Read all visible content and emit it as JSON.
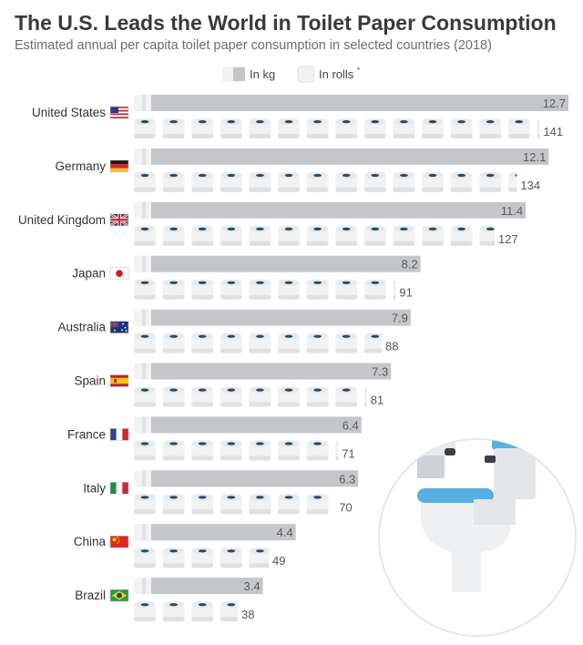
{
  "chart_data": {
    "type": "bar",
    "title": "The U.S. Leads the World in Toilet Paper Consumption",
    "subtitle": "Estimated annual per capita toilet paper consumption in selected countries (2018)",
    "legend": [
      {
        "name": "In kg",
        "sup": ""
      },
      {
        "name": "In rolls",
        "sup": "*"
      }
    ],
    "categories": [
      "United States",
      "Germany",
      "United Kingdom",
      "Japan",
      "Australia",
      "Spain",
      "France",
      "Italy",
      "China",
      "Brazil"
    ],
    "series": [
      {
        "name": "In kg",
        "values": [
          "12.7",
          "12.1",
          "11.4",
          "8.2",
          "7.9",
          "7.3",
          "6.4",
          "6.3",
          "4.4",
          "3.4"
        ]
      },
      {
        "name": "In rolls",
        "values": [
          "141",
          "134",
          "127",
          "91",
          "88",
          "81",
          "71",
          "70",
          "49",
          "38"
        ]
      }
    ],
    "xlim_kg": [
      0,
      12.7
    ],
    "flags": [
      "us",
      "de",
      "gb",
      "jp",
      "au",
      "es",
      "fr",
      "it",
      "cn",
      "br"
    ],
    "colors": {
      "kg_bar": "#c4c6ca",
      "roll_body": "#f2f2f2",
      "roll_edge": "#dfe0e2",
      "roll_core": "#2b4a63"
    }
  }
}
